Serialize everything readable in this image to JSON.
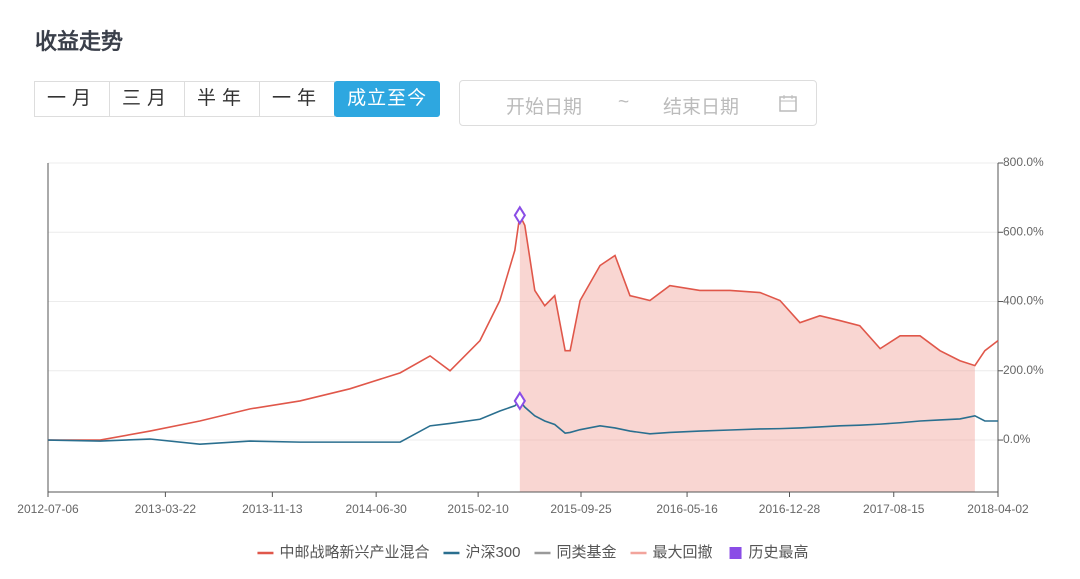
{
  "header": {
    "title": "收益走势",
    "ranges": [
      "一月",
      "三月",
      "半年",
      "一年",
      "成立至今"
    ],
    "active_range": 4,
    "date_start": "开始日期",
    "date_sep": "~",
    "date_end": "结束日期"
  },
  "chart_data": {
    "type": "line",
    "x": [
      "2012-07-06",
      "2012-10-29",
      "2013-02-16",
      "2013-06-06",
      "2013-09-25",
      "2014-01-13",
      "2014-05-03",
      "2014-08-22",
      "2014-10-27",
      "2014-12-10",
      "2015-02-14",
      "2015-03-30",
      "2015-05-02",
      "2015-05-13",
      "2015-05-24",
      "2015-06-15",
      "2015-07-07",
      "2015-07-29",
      "2015-08-21",
      "2015-09-01",
      "2015-09-23",
      "2015-11-06",
      "2015-12-09",
      "2016-01-11",
      "2016-02-24",
      "2016-04-08",
      "2016-06-13",
      "2016-08-19",
      "2016-10-24",
      "2016-12-07",
      "2017-01-20",
      "2017-03-05",
      "2017-04-18",
      "2017-06-01",
      "2017-07-16",
      "2017-08-29",
      "2017-10-12",
      "2017-11-25",
      "2018-01-08",
      "2018-02-10",
      "2018-03-04",
      "2018-04-02"
    ],
    "series": [
      {
        "name": "中邮战略新兴产业混合",
        "color": "#e0574a",
        "values": [
          0,
          0,
          26,
          55,
          90,
          113,
          148,
          194,
          243,
          200,
          287,
          403,
          548,
          649,
          620,
          432,
          388,
          417,
          258,
          258,
          403,
          504,
          533,
          417,
          403,
          446,
          432,
          432,
          426,
          403,
          339,
          359,
          345,
          330,
          264,
          301,
          301,
          258,
          229,
          215,
          258,
          287
        ]
      },
      {
        "name": "沪深300",
        "color": "#2a6f8f",
        "values": [
          0,
          -3,
          3,
          -12,
          -3,
          -6,
          -6,
          -6,
          41,
          48,
          60,
          84,
          99,
          113,
          95,
          70,
          55,
          45,
          20,
          22,
          30,
          41,
          35,
          26,
          18,
          22,
          26,
          29,
          32,
          33,
          35,
          38,
          41,
          43,
          46,
          50,
          55,
          58,
          61,
          70,
          55,
          55
        ]
      },
      {
        "name": "同类基金",
        "color": "#9a9a9a",
        "values": [
          null,
          null,
          null,
          null,
          null,
          null,
          null,
          null,
          null,
          null,
          null,
          null,
          null,
          null,
          null,
          null,
          null,
          null,
          null,
          null,
          null,
          null,
          null,
          null,
          null,
          null,
          null,
          null,
          null,
          null,
          null,
          null,
          null,
          null,
          null,
          null,
          null,
          null,
          null,
          null,
          null,
          null
        ]
      }
    ],
    "max_drawdown": {
      "name": "最大回撤",
      "color": "#f2a49c",
      "start": "2015-05-13",
      "end": "2018-02-10"
    },
    "history_high": {
      "name": "历史最高",
      "color": "#8a4de6",
      "date": "2015-05-13"
    },
    "xlim": [
      "2012-07-06",
      "2018-04-02"
    ],
    "xticks": [
      "2012-07-06",
      "2013-03-22",
      "2013-11-13",
      "2014-06-30",
      "2015-02-10",
      "2015-09-25",
      "2016-05-16",
      "2016-12-28",
      "2017-08-15",
      "2018-04-02"
    ],
    "ylim": [
      -150,
      800
    ],
    "yticks": [
      {
        "value": 0,
        "label": "0.0%"
      },
      {
        "value": 200,
        "label": "200.0%"
      },
      {
        "value": 400,
        "label": "400.0%"
      },
      {
        "value": 600,
        "label": "600.0%"
      },
      {
        "value": 800,
        "label": "800.0%"
      }
    ],
    "grid": true
  }
}
